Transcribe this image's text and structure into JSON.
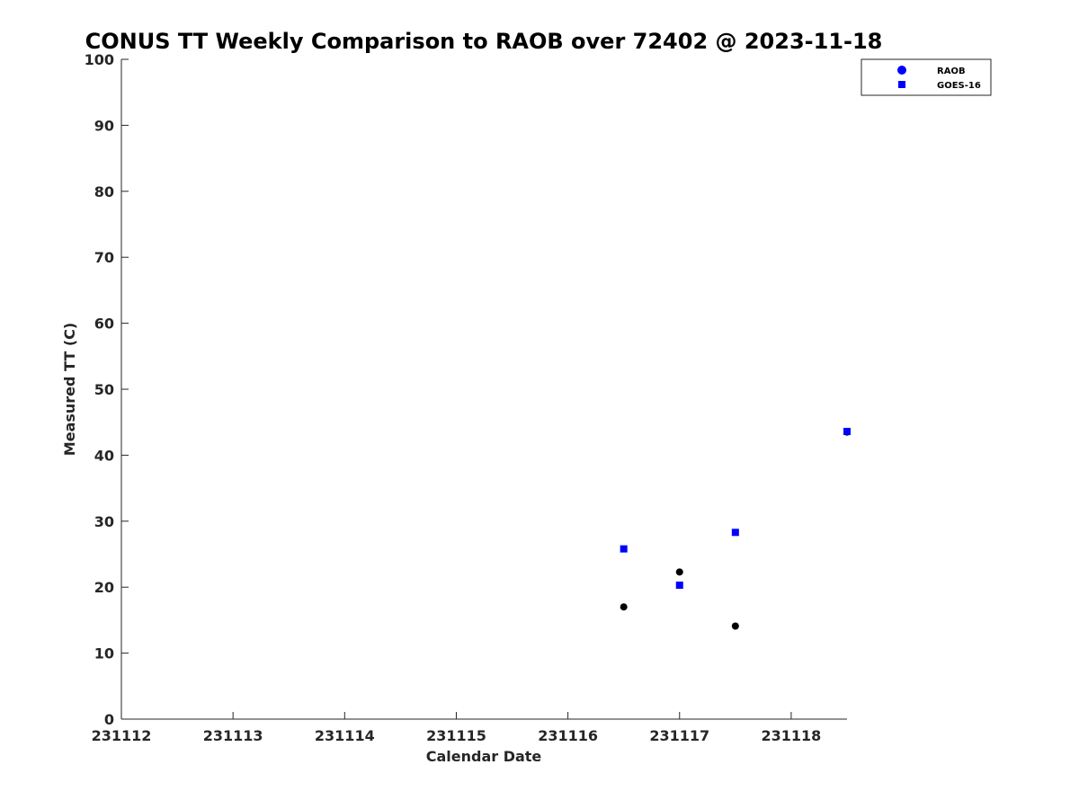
{
  "chart_data": {
    "type": "scatter",
    "title": "CONUS TT Weekly Comparison to RAOB over 72402 @ 2023-11-18",
    "xlabel": "Calendar Date",
    "ylabel": "Measured TT (C)",
    "xlim": [
      231112,
      231118.5
    ],
    "ylim": [
      0,
      100
    ],
    "x_ticks": [
      231112,
      231113,
      231114,
      231115,
      231116,
      231117,
      231118
    ],
    "x_tick_labels": [
      "231112",
      "231113",
      "231114",
      "231115",
      "231116",
      "231117",
      "231118"
    ],
    "y_ticks": [
      0,
      10,
      20,
      30,
      40,
      50,
      60,
      70,
      80,
      90,
      100
    ],
    "y_tick_labels": [
      "0",
      "10",
      "20",
      "30",
      "40",
      "50",
      "60",
      "70",
      "80",
      "90",
      "100"
    ],
    "grid": false,
    "legend_position": "top-right, outside plot",
    "series": [
      {
        "name": "RAOB",
        "marker": "circle",
        "legend_color": "#0000ff",
        "color": "#000000",
        "x": [
          231116.5,
          231117,
          231117.5,
          231118.5
        ],
        "y": [
          17.0,
          22.3,
          14.1,
          43.5
        ]
      },
      {
        "name": "GOES-16",
        "marker": "square",
        "legend_color": "#0000ff",
        "color": "#0000ff",
        "x": [
          231116.5,
          231117,
          231117.5,
          231118.5
        ],
        "y": [
          25.8,
          20.3,
          28.3,
          43.6
        ]
      }
    ]
  }
}
